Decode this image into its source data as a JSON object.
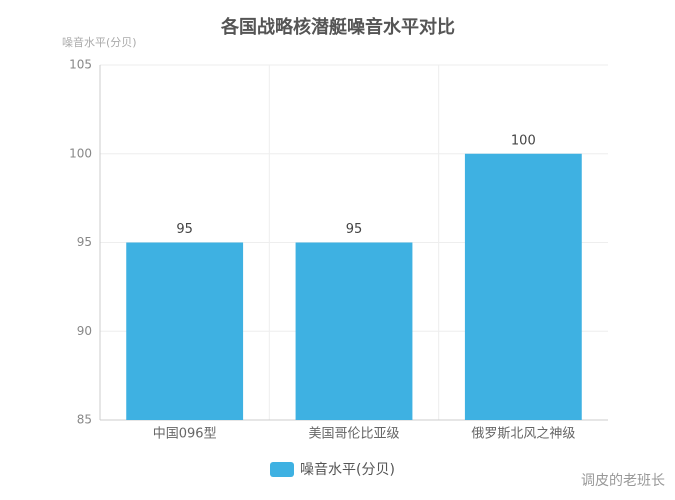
{
  "chart_data": {
    "type": "bar",
    "title": "各国战略核潜艇噪音水平对比",
    "y_label": "噪音水平(分贝)",
    "categories": [
      "中国096型",
      "美国哥伦比亚级",
      "俄罗斯北风之神级"
    ],
    "series": [
      {
        "name": "噪音水平(分贝)",
        "color": "#3eb1e2",
        "values": [
          95,
          95,
          100
        ]
      }
    ],
    "ylim": [
      85,
      105
    ],
    "yticks": [
      85,
      90,
      95,
      100,
      105
    ],
    "grid": true,
    "legend": "bottom",
    "watermark": "调皮的老班长"
  }
}
